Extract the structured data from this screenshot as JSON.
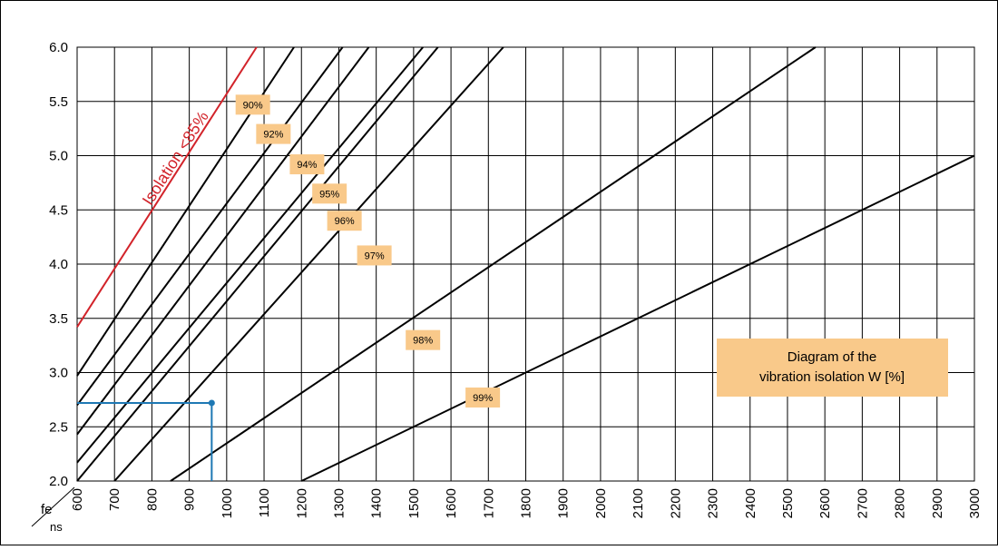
{
  "chart_data": {
    "type": "line",
    "title": "Diagram of the vibration isolation W [%]",
    "title_lines": [
      "Diagram of the",
      "vibration isolation W [%]"
    ],
    "xlabel": "ns",
    "ylabel": "fe",
    "xlim": [
      600,
      3000
    ],
    "ylim": [
      2.0,
      6.0
    ],
    "x_ticks": [
      "600",
      "700",
      "800",
      "900",
      "1000",
      "1100",
      "1200",
      "1300",
      "1400",
      "1500",
      "1600",
      "1700",
      "1800",
      "1900",
      "2000",
      "2100",
      "2200",
      "2300",
      "2400",
      "2500",
      "2600",
      "2700",
      "2800",
      "2900",
      "3000"
    ],
    "y_ticks": [
      "2.0",
      "2.5",
      "3.0",
      "3.5",
      "4.0",
      "4.5",
      "5.0",
      "5.5",
      "6.0"
    ],
    "grid": true,
    "colors": {
      "limit": "#d2232a",
      "example": "#1e78b4",
      "label_bg": "#f9c98a"
    },
    "limit_series": {
      "name": "Isolation <85%",
      "points": [
        [
          600,
          3.42
        ],
        [
          1080,
          6.0
        ]
      ]
    },
    "series": [
      {
        "name": "90%",
        "points": [
          [
            600,
            2.97
          ],
          [
            1180,
            6.0
          ]
        ]
      },
      {
        "name": "92%",
        "points": [
          [
            600,
            2.7
          ],
          [
            1310,
            6.0
          ]
        ]
      },
      {
        "name": "94%",
        "points": [
          [
            600,
            2.43
          ],
          [
            1380,
            6.0
          ]
        ]
      },
      {
        "name": "95%",
        "points": [
          [
            600,
            2.17
          ],
          [
            1525,
            6.0
          ]
        ]
      },
      {
        "name": "96%",
        "points": [
          [
            600,
            2.0
          ],
          [
            1565,
            6.0
          ]
        ]
      },
      {
        "name": "97%",
        "points": [
          [
            700,
            2.0
          ],
          [
            1740,
            6.0
          ]
        ]
      },
      {
        "name": "98%",
        "points": [
          [
            850,
            2.0
          ],
          [
            2575,
            6.0
          ]
        ]
      },
      {
        "name": "99%",
        "points": [
          [
            1200,
            2.0
          ],
          [
            3000,
            5.0
          ]
        ]
      }
    ],
    "label_positions": [
      [
        1070,
        5.47
      ],
      [
        1125,
        5.2
      ],
      [
        1215,
        4.92
      ],
      [
        1275,
        4.65
      ],
      [
        1315,
        4.4
      ],
      [
        1395,
        4.08
      ],
      [
        1525,
        3.3
      ],
      [
        1685,
        2.77
      ]
    ],
    "limit_label_at": [
      875,
      4.95
    ],
    "example_point": {
      "x": 960,
      "y": 2.72
    }
  }
}
